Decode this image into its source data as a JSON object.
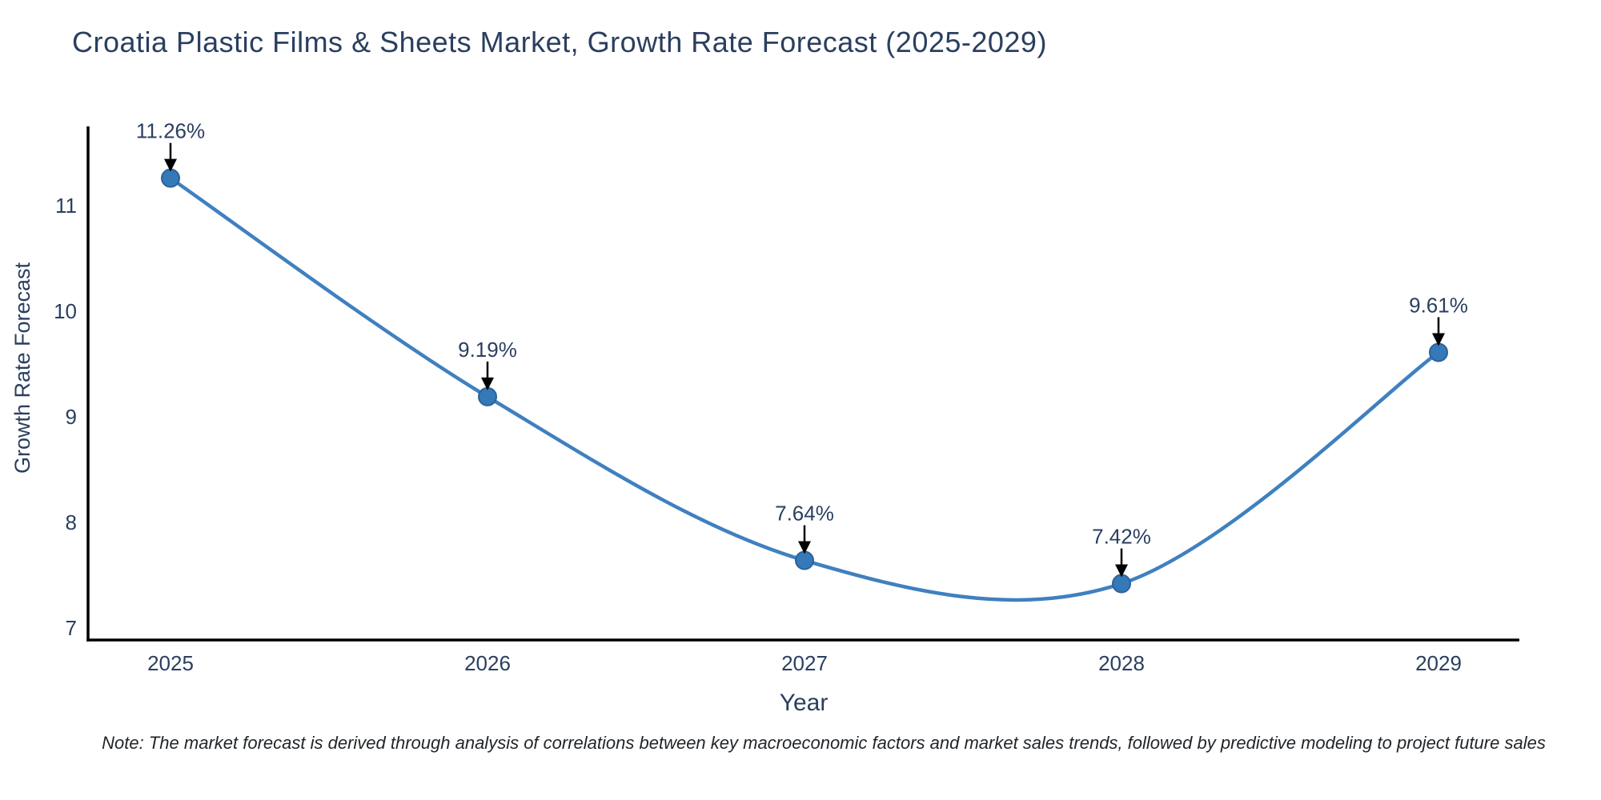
{
  "title": "Croatia Plastic Films & Sheets Market, Growth Rate Forecast (2025-2029)",
  "note": "Note: The market forecast is derived through analysis of correlations between key macroeconomic factors and market sales trends, followed by predictive modeling to project future sales",
  "chart_data": {
    "type": "line",
    "title": "Croatia Plastic Films & Sheets Market, Growth Rate Forecast (2025-2029)",
    "xlabel": "Year",
    "ylabel": "Growth Rate Forecast",
    "x": [
      2025,
      2026,
      2027,
      2028,
      2029
    ],
    "y": [
      11.26,
      9.19,
      7.64,
      7.42,
      9.61
    ],
    "point_labels": [
      "11.26%",
      "9.19%",
      "7.64%",
      "7.42%",
      "9.61%"
    ],
    "x_tick_labels": [
      "2025",
      "2026",
      "2027",
      "2028",
      "2029"
    ],
    "y_ticks": [
      7,
      8,
      9,
      10,
      11
    ],
    "xlim": [
      2024.74,
      2029.26
    ],
    "ylim": [
      6.89,
      11.87
    ],
    "line_shape": "spline",
    "grid": false,
    "legend_position": "none",
    "annotation_style": "value label with downward black arrow to marker",
    "colors": {
      "line": "#3f80c0",
      "marker_fill": "#3579b8",
      "marker_edge": "#2b6299",
      "text": "#2a3f5f",
      "arrow": "#000000",
      "axis": "#000000",
      "background": "#ffffff"
    }
  }
}
